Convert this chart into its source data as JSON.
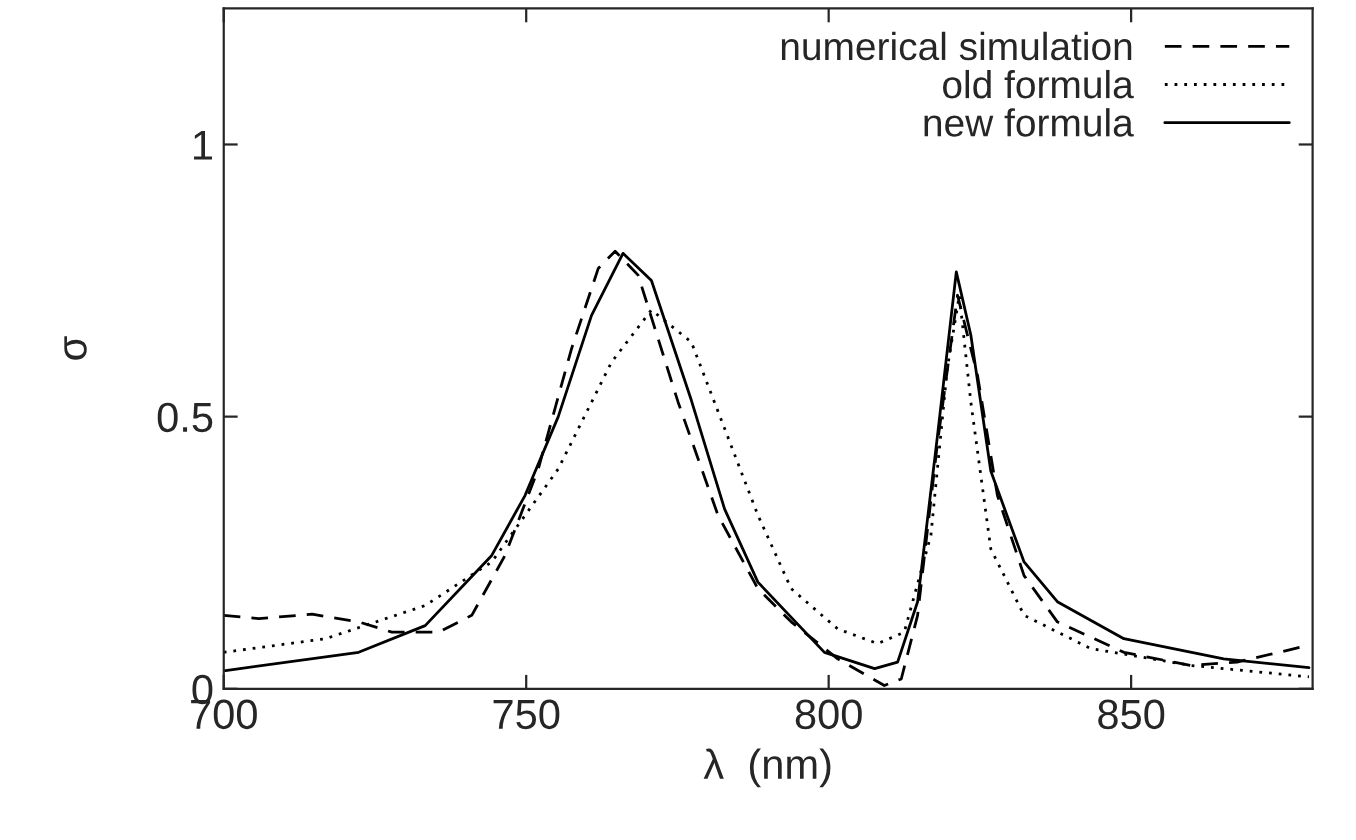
{
  "chart_data": {
    "type": "line",
    "xlabel": "λ  (nm)",
    "ylabel": "σ",
    "xlim": [
      700,
      880
    ],
    "ylim": [
      0,
      1.25
    ],
    "xticks": [
      700,
      750,
      800,
      850
    ],
    "yticks": [
      0,
      0.5,
      1
    ],
    "grid": false,
    "legend": "top right",
    "marker": "none",
    "series": [
      {
        "name": "numerical simulation",
        "color": "#000000",
        "line_style": "dashed",
        "x": [
          700,
          705.8,
          714.6,
          722.3,
          727.8,
          735.5,
          741,
          746.5,
          752,
          757.5,
          761.9,
          764.7,
          768.5,
          775.1,
          781.7,
          788.3,
          793.8,
          801.5,
          809.2,
          812,
          814.7,
          818,
          821.3,
          824.6,
          827.9,
          832.3,
          837.8,
          848.8,
          859.8,
          867.5,
          879.4
        ],
        "values": [
          0.135,
          0.129,
          0.137,
          0.123,
          0.104,
          0.104,
          0.135,
          0.245,
          0.404,
          0.625,
          0.772,
          0.804,
          0.76,
          0.527,
          0.319,
          0.184,
          0.123,
          0.055,
          0.006,
          0.018,
          0.135,
          0.453,
          0.723,
          0.576,
          0.355,
          0.208,
          0.123,
          0.067,
          0.043,
          0.049,
          0.08
        ]
      },
      {
        "name": "old formula",
        "color": "#000000",
        "line_style": "dotted",
        "x": [
          700,
          716.8,
          733.3,
          744.3,
          755.3,
          764.1,
          770.7,
          777.3,
          782.8,
          788.3,
          793.8,
          801.5,
          808.1,
          812.5,
          816.9,
          819.6,
          821.6,
          823.5,
          826.8,
          832.3,
          843.3,
          859.8,
          879.4
        ],
        "values": [
          0.067,
          0.092,
          0.153,
          0.233,
          0.404,
          0.6,
          0.696,
          0.637,
          0.478,
          0.319,
          0.184,
          0.11,
          0.083,
          0.104,
          0.282,
          0.588,
          0.723,
          0.527,
          0.257,
          0.135,
          0.074,
          0.043,
          0.022
        ]
      },
      {
        "name": "new formula",
        "color": "#000000",
        "line_style": "solid",
        "x": [
          700,
          722.3,
          733.3,
          744.3,
          749.8,
          755.3,
          760.8,
          766,
          770.7,
          777.3,
          782.8,
          788.3,
          799.3,
          807.6,
          811.4,
          814.7,
          818,
          821.1,
          823.5,
          826.8,
          832.3,
          837.8,
          848.8,
          865.3,
          879.4
        ],
        "values": [
          0.033,
          0.067,
          0.116,
          0.245,
          0.355,
          0.5,
          0.686,
          0.8,
          0.75,
          0.53,
          0.33,
          0.196,
          0.067,
          0.037,
          0.049,
          0.16,
          0.466,
          0.766,
          0.65,
          0.4,
          0.233,
          0.16,
          0.092,
          0.055,
          0.039
        ]
      }
    ]
  }
}
